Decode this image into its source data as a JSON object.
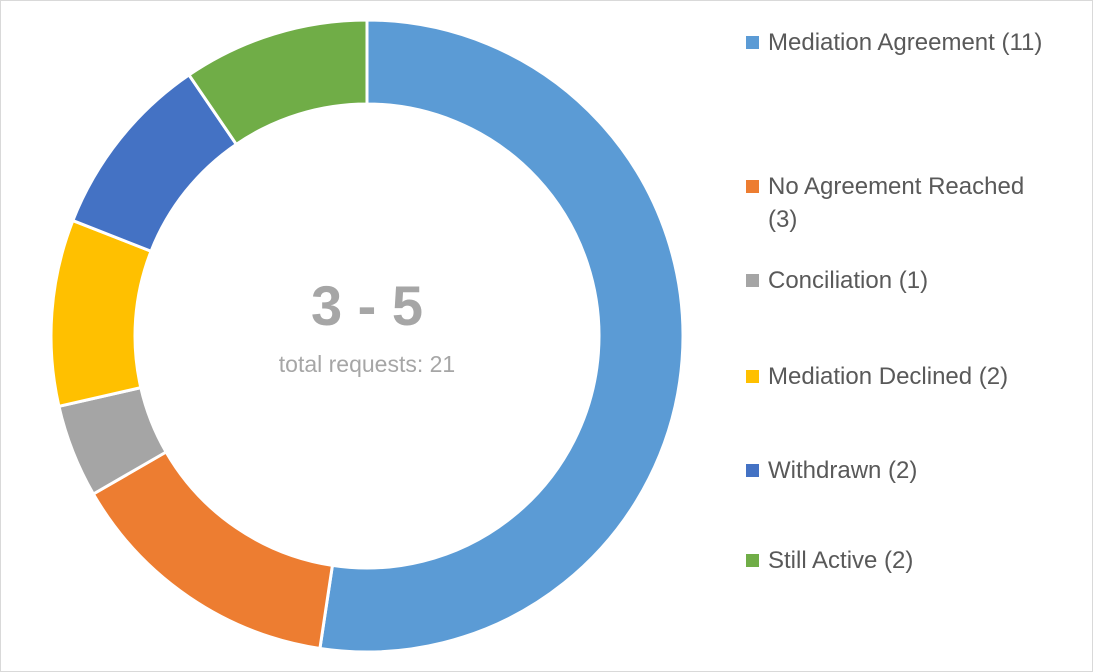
{
  "chart_data": {
    "type": "donut",
    "title": "3 - 5",
    "subtitle": "total requests: 21",
    "categories": [
      "Mediation Agreement (11)",
      "No Agreement Reached (3)",
      "Conciliation (1)",
      "Mediation Declined (2)",
      "Withdrawn (2)",
      "Still Active (2)"
    ],
    "values": [
      11,
      3,
      1,
      2,
      2,
      2
    ],
    "colors": [
      "#5b9bd5",
      "#ed7d31",
      "#a5a5a5",
      "#ffc000",
      "#4472c4",
      "#70ad47"
    ],
    "legend": "right"
  }
}
